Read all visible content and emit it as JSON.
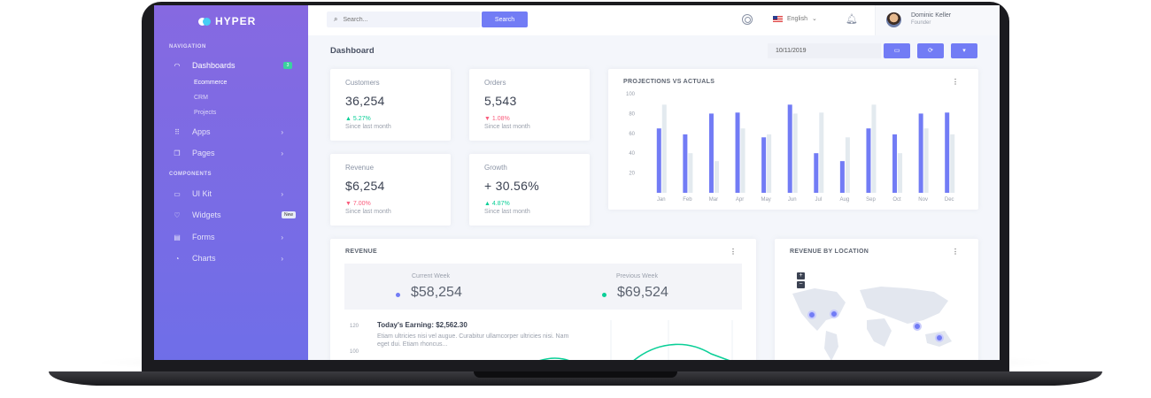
{
  "brand": {
    "name": "HYPER"
  },
  "sidebar": {
    "nav_title": "NAVIGATION",
    "components_title": "COMPONENTS",
    "dashboards": {
      "label": "Dashboards",
      "badge": "3"
    },
    "sub_items": [
      "Ecommerce",
      "CRM",
      "Projects"
    ],
    "apps": "Apps",
    "pages": "Pages",
    "uikit": "UI Kit",
    "widgets": {
      "label": "Widgets",
      "badge": "New"
    },
    "forms": "Forms",
    "charts": "Charts"
  },
  "topbar": {
    "search_placeholder": "Search...",
    "search_button": "Search",
    "language": "English",
    "user_name": "Dominic Keller",
    "user_role": "Founder"
  },
  "page": {
    "title": "Dashboard",
    "date": "10/11/2019"
  },
  "stats": [
    {
      "label": "Customers",
      "value": "36,254",
      "change": "5.27%",
      "direction": "up",
      "since": "Since last month"
    },
    {
      "label": "Orders",
      "value": "5,543",
      "change": "1.08%",
      "direction": "down",
      "since": "Since last month"
    },
    {
      "label": "Revenue",
      "value": "$6,254",
      "change": "7.00%",
      "direction": "down",
      "since": "Since last month"
    },
    {
      "label": "Growth",
      "value": "+ 30.56%",
      "change": "4.87%",
      "direction": "up",
      "since": "Since last month"
    }
  ],
  "projections": {
    "title": "PROJECTIONS VS ACTUALS"
  },
  "revenue": {
    "title": "REVENUE",
    "current_label": "Current Week",
    "current_value": "$58,254",
    "previous_label": "Previous Week",
    "previous_value": "$69,524",
    "earning_title": "Today's Earning: $2,562.30",
    "earning_desc": "Etiam ultricies nisi vel augue. Curabitur ullamcorper ultricies nisi. Nam eget dui. Etiam rhoncus...",
    "y_ticks": [
      "120",
      "100"
    ]
  },
  "location": {
    "title": "REVENUE BY LOCATION",
    "zoom_in": "+",
    "zoom_out": "−"
  },
  "colors": {
    "primary": "#727cf5",
    "secondary_bar": "#e3eaef",
    "success": "#0acf97",
    "danger": "#fa5c7c",
    "sidebar_top": "#8669e1",
    "sidebar_bottom": "#6f6ee8"
  },
  "chart_data": {
    "type": "bar",
    "title": "PROJECTIONS VS ACTUALS",
    "categories": [
      "Jan",
      "Feb",
      "Mar",
      "Apr",
      "May",
      "Jun",
      "Jul",
      "Aug",
      "Sep",
      "Oct",
      "Nov",
      "Dec"
    ],
    "series": [
      {
        "values": [
          65,
          59,
          80,
          81,
          56,
          89,
          40,
          32,
          65,
          59,
          80,
          81
        ]
      },
      {
        "values": [
          89,
          40,
          32,
          65,
          59,
          80,
          81,
          56,
          89,
          40,
          65,
          59
        ]
      }
    ],
    "y_ticks": [
      100,
      80,
      60,
      40,
      20
    ],
    "ylim": [
      0,
      100
    ],
    "grid": false,
    "legend": "none"
  }
}
